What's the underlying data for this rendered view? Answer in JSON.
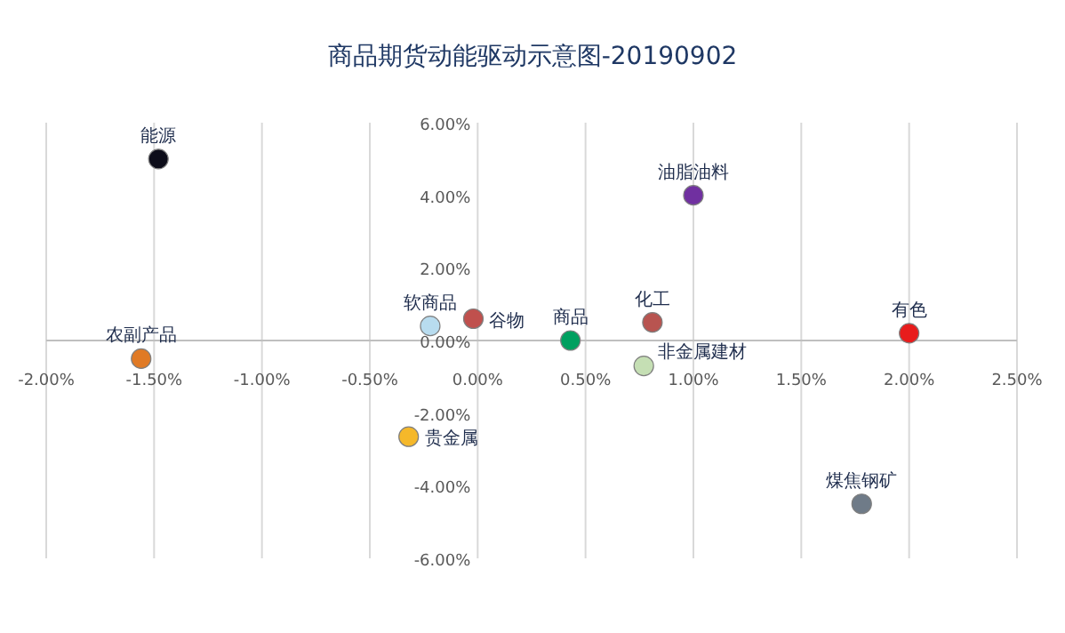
{
  "chart_data": {
    "type": "scatter",
    "title": "商品期货动能驱动示意图-20190902",
    "xlim": [
      -2,
      2.5
    ],
    "ylim": [
      -6,
      6
    ],
    "xticks": [
      {
        "value": -2,
        "label": "-2.00%"
      },
      {
        "value": -1.5,
        "label": "-1.50%"
      },
      {
        "value": -1,
        "label": "-1.00%"
      },
      {
        "value": -0.5,
        "label": "-0.50%"
      },
      {
        "value": 0,
        "label": "0.00%"
      },
      {
        "value": 0.5,
        "label": "0.50%"
      },
      {
        "value": 1,
        "label": "1.00%"
      },
      {
        "value": 1.5,
        "label": "1.50%"
      },
      {
        "value": 2,
        "label": "2.00%"
      },
      {
        "value": 2.5,
        "label": "2.50%"
      }
    ],
    "yticks": [
      {
        "value": -6,
        "label": "-6.00%"
      },
      {
        "value": -4,
        "label": "-4.00%"
      },
      {
        "value": -2,
        "label": "-2.00%"
      },
      {
        "value": 0,
        "label": "0.00%"
      },
      {
        "value": 2,
        "label": "2.00%"
      },
      {
        "value": 4,
        "label": "4.00%"
      },
      {
        "value": 6,
        "label": "6.00%"
      }
    ],
    "grid": "x",
    "marker": "circle",
    "series": [
      {
        "name": "能源",
        "color": "#0d0d1a",
        "x": [
          -1.48
        ],
        "values": [
          5.0
        ]
      },
      {
        "name": "农副产品",
        "color": "#e07a25",
        "x": [
          -1.56
        ],
        "values": [
          -0.5
        ]
      },
      {
        "name": "软商品",
        "color": "#b8dcef",
        "x": [
          -0.22
        ],
        "values": [
          0.4
        ]
      },
      {
        "name": "谷物",
        "color": "#c0504d",
        "x": [
          -0.02
        ],
        "values": [
          0.6
        ]
      },
      {
        "name": "商品",
        "color": "#00a060",
        "x": [
          0.43
        ],
        "values": [
          0.0
        ]
      },
      {
        "name": "化工",
        "color": "#b85450",
        "x": [
          0.81
        ],
        "values": [
          0.5
        ]
      },
      {
        "name": "非金属建材",
        "color": "#c5dfb4",
        "x": [
          0.77
        ],
        "values": [
          -0.7
        ]
      },
      {
        "name": "油脂油料",
        "color": "#7030a0",
        "x": [
          1.0
        ],
        "values": [
          4.0
        ]
      },
      {
        "name": "有色",
        "color": "#e81c1c",
        "x": [
          2.0
        ],
        "values": [
          0.2
        ]
      },
      {
        "name": "贵金属",
        "color": "#f5b82a",
        "x": [
          -0.32
        ],
        "values": [
          -2.65
        ]
      },
      {
        "name": "煤焦钢矿",
        "color": "#6f7b88",
        "x": [
          1.78
        ],
        "values": [
          -4.5
        ]
      }
    ]
  }
}
